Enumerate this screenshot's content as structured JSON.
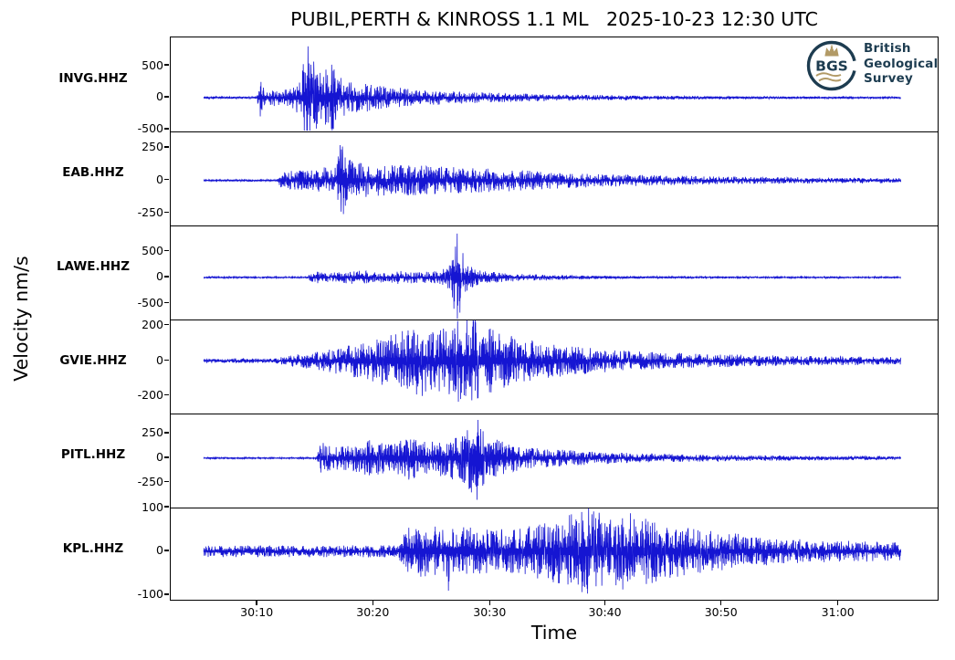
{
  "figure": {
    "title": "PUBIL,PERTH & KINROSS 1.1 ML   2025-10-23 12:30 UTC",
    "xlabel": "Time",
    "ylabel": "Velocity nm/s",
    "background": "#ffffff"
  },
  "logo": {
    "abbr": "BGS",
    "name_lines": [
      "British",
      "Geological",
      "Survey"
    ],
    "navy": "#1d3c50",
    "gold": "#b29a66"
  },
  "colors": {
    "trace": "#1515d2",
    "axis": "#000000"
  },
  "chart_data": {
    "type": "line",
    "subtype": "seismogram-multitrace",
    "title": "PUBIL,PERTH & KINROSS 1.1 ML   2025-10-23 12:30 UTC",
    "xlabel": "Time",
    "ylabel": "Velocity nm/s",
    "x_ticks": {
      "labels": [
        "30:10",
        "30:20",
        "30:30",
        "30:40",
        "30:50",
        "31:00"
      ],
      "fracs": [
        0.113,
        0.264,
        0.416,
        0.566,
        0.717,
        0.869
      ]
    },
    "data_span_frac": [
      0.043,
      0.952
    ],
    "stations": [
      {
        "name": "INVG.HHZ",
        "y_ticks": [
          500,
          0,
          -500
        ],
        "y_lim": [
          -530,
          945
        ],
        "seed": 11,
        "envelope": [
          [
            0.043,
            18
          ],
          [
            0.112,
            18
          ],
          [
            0.117,
            330
          ],
          [
            0.123,
            100
          ],
          [
            0.132,
            140
          ],
          [
            0.148,
            120
          ],
          [
            0.16,
            170
          ],
          [
            0.17,
            330
          ],
          [
            0.178,
            900
          ],
          [
            0.188,
            520
          ],
          [
            0.198,
            400
          ],
          [
            0.208,
            620
          ],
          [
            0.218,
            340
          ],
          [
            0.235,
            260
          ],
          [
            0.27,
            190
          ],
          [
            0.32,
            130
          ],
          [
            0.38,
            95
          ],
          [
            0.45,
            65
          ],
          [
            0.52,
            48
          ],
          [
            0.6,
            36
          ],
          [
            0.7,
            26
          ],
          [
            0.8,
            20
          ],
          [
            0.88,
            16
          ],
          [
            0.952,
            14
          ]
        ]
      },
      {
        "name": "EAB.HHZ",
        "y_ticks": [
          250,
          0,
          -250
        ],
        "y_lim": [
          -345,
          375
        ],
        "seed": 22,
        "envelope": [
          [
            0.043,
            8
          ],
          [
            0.138,
            8
          ],
          [
            0.145,
            65
          ],
          [
            0.16,
            75
          ],
          [
            0.18,
            85
          ],
          [
            0.2,
            100
          ],
          [
            0.215,
            125
          ],
          [
            0.223,
            365
          ],
          [
            0.23,
            170
          ],
          [
            0.25,
            130
          ],
          [
            0.28,
            115
          ],
          [
            0.32,
            120
          ],
          [
            0.36,
            105
          ],
          [
            0.4,
            95
          ],
          [
            0.44,
            85
          ],
          [
            0.5,
            65
          ],
          [
            0.56,
            50
          ],
          [
            0.62,
            40
          ],
          [
            0.7,
            32
          ],
          [
            0.78,
            26
          ],
          [
            0.86,
            22
          ],
          [
            0.952,
            18
          ]
        ]
      },
      {
        "name": "LAWE.HHZ",
        "y_ticks": [
          500,
          0,
          -500
        ],
        "y_lim": [
          -810,
          1000
        ],
        "seed": 33,
        "envelope": [
          [
            0.043,
            15
          ],
          [
            0.178,
            15
          ],
          [
            0.186,
            130
          ],
          [
            0.2,
            85
          ],
          [
            0.22,
            100
          ],
          [
            0.245,
            140
          ],
          [
            0.27,
            95
          ],
          [
            0.3,
            130
          ],
          [
            0.325,
            100
          ],
          [
            0.35,
            130
          ],
          [
            0.362,
            220
          ],
          [
            0.372,
            950
          ],
          [
            0.382,
            420
          ],
          [
            0.394,
            180
          ],
          [
            0.41,
            120
          ],
          [
            0.44,
            80
          ],
          [
            0.48,
            55
          ],
          [
            0.53,
            38
          ],
          [
            0.6,
            26
          ],
          [
            0.68,
            20
          ],
          [
            0.78,
            16
          ],
          [
            0.952,
            13
          ]
        ]
      },
      {
        "name": "GVIE.HHZ",
        "y_ticks": [
          200,
          0,
          -200
        ],
        "y_lim": [
          -300,
          235
        ],
        "seed": 44,
        "envelope": [
          [
            0.043,
            13
          ],
          [
            0.135,
            13
          ],
          [
            0.16,
            35
          ],
          [
            0.2,
            60
          ],
          [
            0.24,
            95
          ],
          [
            0.27,
            130
          ],
          [
            0.3,
            170
          ],
          [
            0.325,
            210
          ],
          [
            0.345,
            170
          ],
          [
            0.365,
            200
          ],
          [
            0.39,
            300
          ],
          [
            0.405,
            210
          ],
          [
            0.425,
            170
          ],
          [
            0.455,
            130
          ],
          [
            0.49,
            100
          ],
          [
            0.53,
            80
          ],
          [
            0.58,
            60
          ],
          [
            0.64,
            48
          ],
          [
            0.71,
            38
          ],
          [
            0.79,
            30
          ],
          [
            0.87,
            26
          ],
          [
            0.952,
            22
          ]
        ]
      },
      {
        "name": "PITL.HHZ",
        "y_ticks": [
          250,
          0,
          -250
        ],
        "y_lim": [
          -505,
          455
        ],
        "seed": 55,
        "envelope": [
          [
            0.043,
            8
          ],
          [
            0.19,
            8
          ],
          [
            0.196,
            175
          ],
          [
            0.21,
            115
          ],
          [
            0.235,
            130
          ],
          [
            0.26,
            185
          ],
          [
            0.285,
            160
          ],
          [
            0.31,
            225
          ],
          [
            0.335,
            170
          ],
          [
            0.36,
            200
          ],
          [
            0.385,
            260
          ],
          [
            0.4,
            490
          ],
          [
            0.412,
            230
          ],
          [
            0.44,
            150
          ],
          [
            0.48,
            105
          ],
          [
            0.53,
            75
          ],
          [
            0.59,
            55
          ],
          [
            0.66,
            40
          ],
          [
            0.74,
            30
          ],
          [
            0.83,
            24
          ],
          [
            0.952,
            20
          ]
        ]
      },
      {
        "name": "KPL.HHZ",
        "y_ticks": [
          100,
          0,
          -100
        ],
        "y_lim": [
          -115,
          100
        ],
        "seed": 66,
        "envelope": [
          [
            0.043,
            13
          ],
          [
            0.295,
            14
          ],
          [
            0.31,
            55
          ],
          [
            0.34,
            62
          ],
          [
            0.358,
            48
          ],
          [
            0.362,
            95
          ],
          [
            0.368,
            50
          ],
          [
            0.39,
            58
          ],
          [
            0.42,
            48
          ],
          [
            0.455,
            56
          ],
          [
            0.49,
            65
          ],
          [
            0.52,
            85
          ],
          [
            0.545,
            100
          ],
          [
            0.57,
            80
          ],
          [
            0.6,
            92
          ],
          [
            0.625,
            75
          ],
          [
            0.655,
            60
          ],
          [
            0.69,
            50
          ],
          [
            0.73,
            42
          ],
          [
            0.78,
            32
          ],
          [
            0.84,
            26
          ],
          [
            0.9,
            24
          ],
          [
            0.952,
            22
          ]
        ]
      }
    ]
  },
  "layout_meta": {
    "panel_count": 6
  }
}
